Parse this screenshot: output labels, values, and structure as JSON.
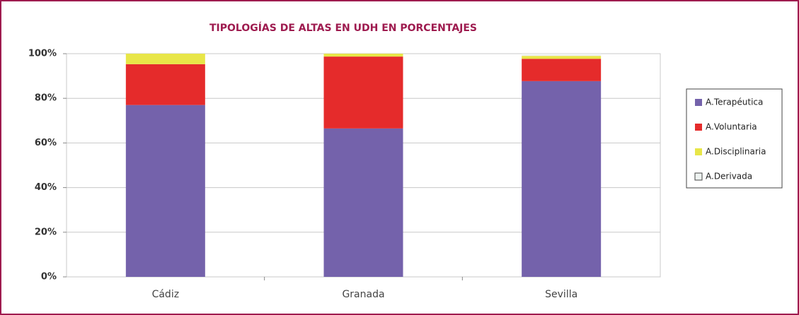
{
  "chart_data": {
    "type": "stacked_bar",
    "title": "TIPOLOGÍAS DE ALTAS EN UDH EN PORCENTAJES",
    "categories": [
      "Cádiz",
      "Granada",
      "Sevilla"
    ],
    "series": [
      {
        "name": "A.Terapéutica",
        "color": "#7462ab",
        "values": [
          77,
          66.5,
          87.7
        ]
      },
      {
        "name": "A.Voluntaria",
        "color": "#e52b2b",
        "values": [
          18.3,
          32.2,
          10
        ]
      },
      {
        "name": "A.Disciplinaria",
        "color": "#e8e648",
        "values": [
          4.7,
          1.3,
          1.3
        ]
      },
      {
        "name": "A.Derivada",
        "color": "#eef3f1",
        "values": [
          0,
          0,
          1
        ]
      }
    ],
    "ylim": [
      0,
      100
    ],
    "yticks": [
      {
        "value": 0,
        "label": "0%"
      },
      {
        "value": 20,
        "label": "20%"
      },
      {
        "value": 40,
        "label": "40%"
      },
      {
        "value": 60,
        "label": "60%"
      },
      {
        "value": 80,
        "label": "80%"
      },
      {
        "value": 100,
        "label": "100%"
      }
    ],
    "grid": true,
    "legend": "right"
  }
}
